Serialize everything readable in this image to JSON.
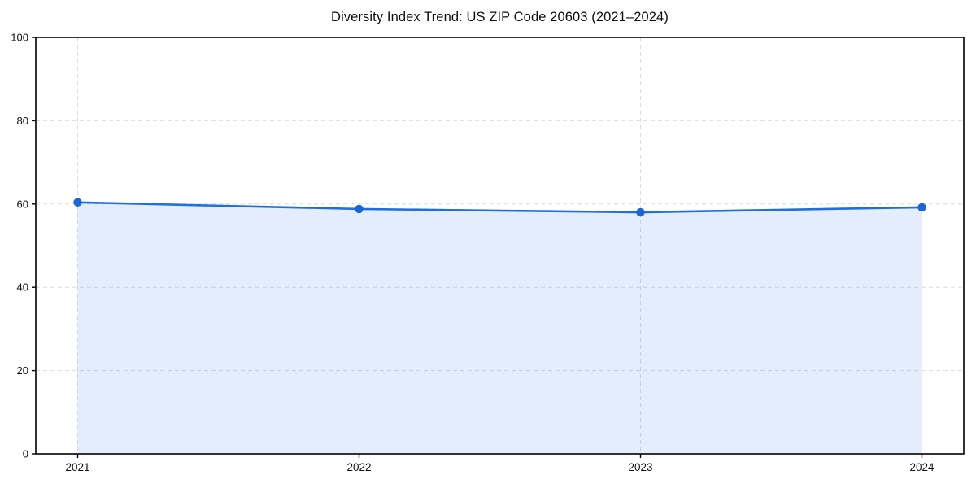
{
  "chart_data": {
    "type": "line",
    "title": "Diversity Index Trend: US ZIP Code 20603 (2021–2024)",
    "x": [
      2021,
      2022,
      2023,
      2024
    ],
    "xticklabels": [
      "2021",
      "2022",
      "2023",
      "2024"
    ],
    "series": [
      {
        "name": "Diversity Index",
        "values": [
          60.4,
          58.8,
          58.0,
          59.2
        ]
      }
    ],
    "xlabel": "",
    "ylabel": "",
    "ylim": [
      0,
      100
    ],
    "yticks": [
      0,
      20,
      40,
      60,
      80,
      100
    ],
    "grid": true,
    "grid_style": "dashed",
    "legend": "none",
    "area_fill": true,
    "fill_opacity": 0.12,
    "colors": {
      "line": "#1f6fe0",
      "marker": "#1a66d6",
      "fill": "#1f6fe0",
      "grid": "#dcdcdc",
      "axis": "#000000",
      "text": "#111111",
      "background": "#ffffff"
    }
  }
}
